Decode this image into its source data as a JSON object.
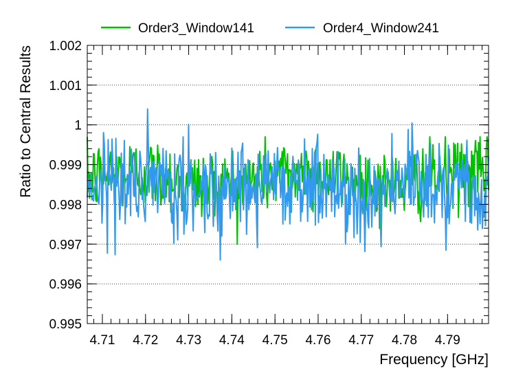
{
  "chart_data": {
    "type": "line",
    "title": "",
    "xlabel": "Frequency [GHz]",
    "ylabel": "Ratio to Central Results",
    "xlim": [
      4.7065,
      4.7995
    ],
    "ylim": [
      0.995,
      1.002
    ],
    "x_ticks": [
      4.71,
      4.72,
      4.73,
      4.74,
      4.75,
      4.76,
      4.77,
      4.78,
      4.79
    ],
    "x_tick_labels": [
      "4.71",
      "4.72",
      "4.73",
      "4.74",
      "4.75",
      "4.76",
      "4.77",
      "4.78",
      "4.79"
    ],
    "y_ticks": [
      0.995,
      0.996,
      0.997,
      0.998,
      0.999,
      1.0,
      1.001,
      1.002
    ],
    "y_tick_labels": [
      "0.995",
      "0.996",
      "0.997",
      "0.998",
      "0.999",
      "1",
      "1.001",
      "1.002"
    ],
    "grid": "horizontal dotted",
    "legend_position": "top",
    "series": [
      {
        "name": "Order3_Window141",
        "color": "#00c000",
        "x_range": [
          4.7065,
          4.7995
        ],
        "points": 520,
        "mean": 0.99865,
        "noise_std": 0.00045,
        "approx_min": 0.997,
        "approx_max": 0.9997
      },
      {
        "name": "Order4_Window241",
        "color": "#3399ee",
        "x_range": [
          4.7065,
          4.7995
        ],
        "points": 520,
        "mean": 0.99845,
        "noise_std": 0.0006,
        "approx_min": 0.9966,
        "approx_max": 1.0004
      }
    ]
  }
}
